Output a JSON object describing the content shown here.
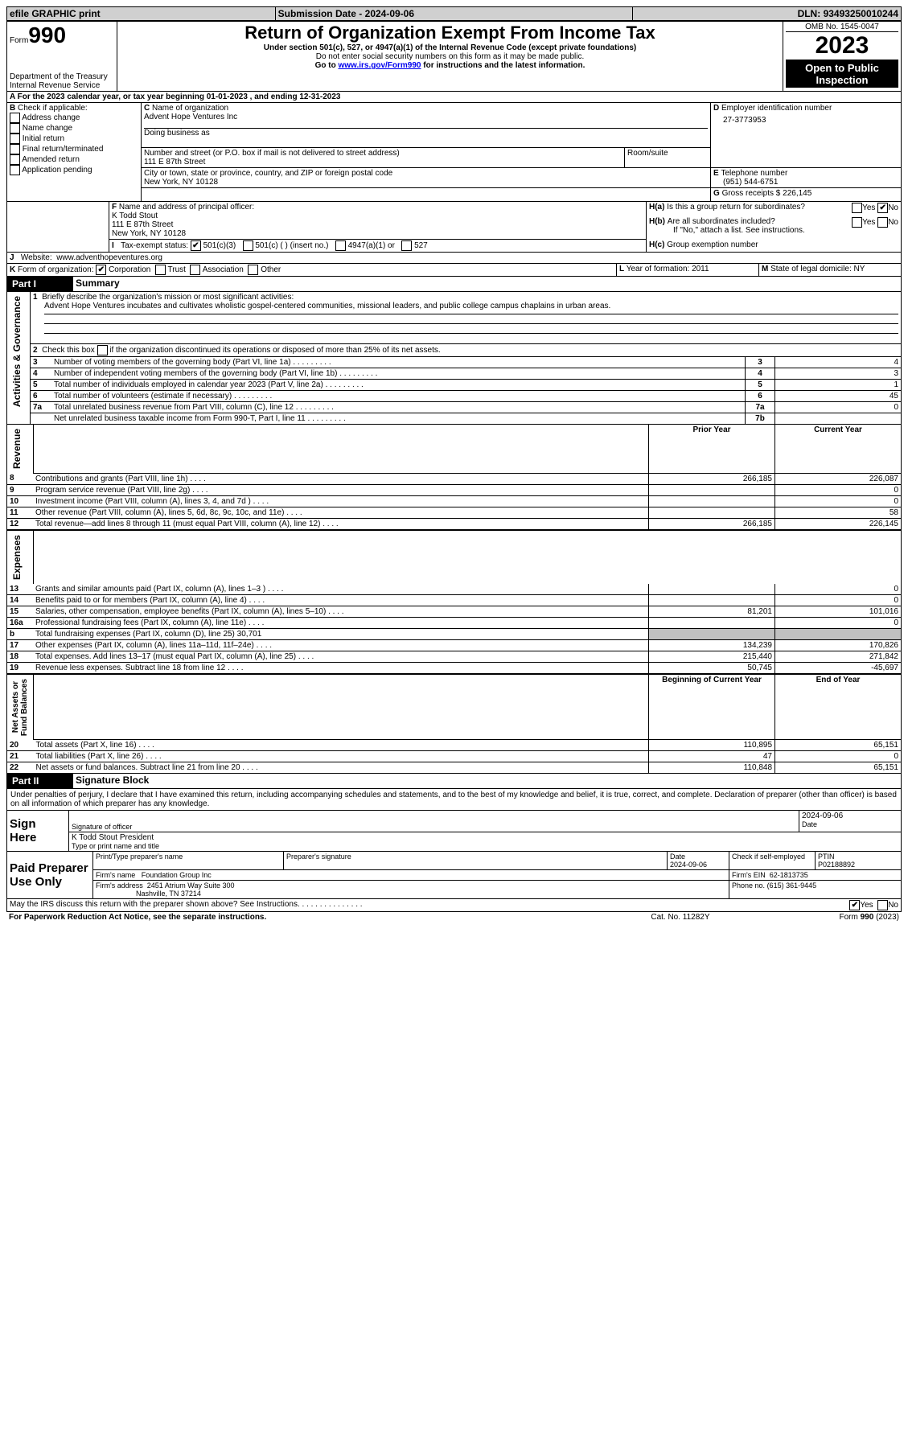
{
  "topbar": {
    "efile": "efile GRAPHIC print",
    "subdate_label": "Submission Date - ",
    "subdate": "2024-09-06",
    "dln_label": "DLN: ",
    "dln": "93493250010244"
  },
  "header": {
    "form_label": "Form",
    "form_num": "990",
    "title": "Return of Organization Exempt From Income Tax",
    "subtitle": "Under section 501(c), 527, or 4947(a)(1) of the Internal Revenue Code (except private foundations)",
    "warn": "Do not enter social security numbers on this form as it may be made public.",
    "goto": "Go to ",
    "goto_link": "www.irs.gov/Form990",
    "goto_tail": " for instructions and the latest information.",
    "dept": "Department of the Treasury\nInternal Revenue Service",
    "omb": "OMB No. 1545-0047",
    "year": "2023",
    "public": "Open to Public Inspection"
  },
  "A": {
    "line": "For the 2023 calendar year, or tax year beginning 01-01-2023    , and ending 12-31-2023"
  },
  "B": {
    "label": "Check if applicable:",
    "items": [
      "Address change",
      "Name change",
      "Initial return",
      "Final return/terminated",
      "Amended return",
      "Application pending"
    ]
  },
  "C": {
    "name_label": "Name of organization",
    "name": "Advent Hope Ventures Inc",
    "dba_label": "Doing business as",
    "addr_label": "Number and street (or P.O. box if mail is not delivered to street address)",
    "addr": "111 E 87th Street",
    "room_label": "Room/suite",
    "city_label": "City or town, state or province, country, and ZIP or foreign postal code",
    "city": "New York, NY  10128"
  },
  "D": {
    "label": "Employer identification number",
    "val": "27-3773953"
  },
  "E": {
    "label": "Telephone number",
    "val": "(951) 544-6751"
  },
  "G": {
    "label": "Gross receipts $",
    "val": "226,145"
  },
  "F": {
    "label": "Name and address of principal officer:",
    "name": "K Todd Stout",
    "addr": "111 E 87th Street",
    "city": "New York, NY  10128"
  },
  "H": {
    "a": "Is this a group return for subordinates?",
    "a_no": true,
    "b": "Are all subordinates included?",
    "b_note": "If \"No,\" attach a list. See instructions.",
    "c": "Group exemption number"
  },
  "I": {
    "label": "Tax-exempt status:",
    "c3": "501(c)(3)",
    "cins": "501(c) (  ) (insert no.)",
    "a1": "4947(a)(1) or",
    "s527": "527",
    "c3_checked": true
  },
  "J": {
    "label": "Website:",
    "val": "www.adventhopeventures.org"
  },
  "K": {
    "label": "Form of organization:",
    "corp": "Corporation",
    "trust": "Trust",
    "assoc": "Association",
    "other": "Other",
    "corp_checked": true
  },
  "L": {
    "label": "Year of formation: ",
    "val": "2011"
  },
  "M": {
    "label": "State of legal domicile: ",
    "val": "NY"
  },
  "part1": {
    "title": "Part I",
    "heading": "Summary",
    "q1": "Briefly describe the organization's mission or most significant activities:",
    "mission": "Advent Hope Ventures incubates and cultivates wholistic gospel-centered communities, missional leaders, and public college campus chaplains in urban areas.",
    "q2": "Check this box",
    "q2b": "if the organization discontinued its operations or disposed of more than 25% of its net assets.",
    "rows": [
      {
        "n": "3",
        "t": "Number of voting members of the governing body (Part VI, line 1a)",
        "box": "3",
        "v": "4"
      },
      {
        "n": "4",
        "t": "Number of independent voting members of the governing body (Part VI, line 1b)",
        "box": "4",
        "v": "3"
      },
      {
        "n": "5",
        "t": "Total number of individuals employed in calendar year 2023 (Part V, line 2a)",
        "box": "5",
        "v": "1"
      },
      {
        "n": "6",
        "t": "Total number of volunteers (estimate if necessary)",
        "box": "6",
        "v": "45"
      },
      {
        "n": "7a",
        "t": "Total unrelated business revenue from Part VIII, column (C), line 12",
        "box": "7a",
        "v": "0"
      },
      {
        "n": "",
        "t": "Net unrelated business taxable income from Form 990-T, Part I, line 11",
        "box": "7b",
        "v": ""
      }
    ],
    "col_prior": "Prior Year",
    "col_curr": "Current Year",
    "revenue": [
      {
        "n": "8",
        "t": "Contributions and grants (Part VIII, line 1h)",
        "p": "266,185",
        "c": "226,087"
      },
      {
        "n": "9",
        "t": "Program service revenue (Part VIII, line 2g)",
        "p": "",
        "c": "0"
      },
      {
        "n": "10",
        "t": "Investment income (Part VIII, column (A), lines 3, 4, and 7d )",
        "p": "",
        "c": "0"
      },
      {
        "n": "11",
        "t": "Other revenue (Part VIII, column (A), lines 5, 6d, 8c, 9c, 10c, and 11e)",
        "p": "",
        "c": "58"
      },
      {
        "n": "12",
        "t": "Total revenue—add lines 8 through 11 (must equal Part VIII, column (A), line 12)",
        "p": "266,185",
        "c": "226,145"
      }
    ],
    "expenses": [
      {
        "n": "13",
        "t": "Grants and similar amounts paid (Part IX, column (A), lines 1–3 )",
        "p": "",
        "c": "0"
      },
      {
        "n": "14",
        "t": "Benefits paid to or for members (Part IX, column (A), line 4)",
        "p": "",
        "c": "0"
      },
      {
        "n": "15",
        "t": "Salaries, other compensation, employee benefits (Part IX, column (A), lines 5–10)",
        "p": "81,201",
        "c": "101,016"
      },
      {
        "n": "16a",
        "t": "Professional fundraising fees (Part IX, column (A), line 11e)",
        "p": "",
        "c": "0"
      },
      {
        "n": "b",
        "t": "Total fundraising expenses (Part IX, column (D), line 25) 30,701",
        "p": "gray",
        "c": "gray"
      },
      {
        "n": "17",
        "t": "Other expenses (Part IX, column (A), lines 11a–11d, 11f–24e)",
        "p": "134,239",
        "c": "170,826"
      },
      {
        "n": "18",
        "t": "Total expenses. Add lines 13–17 (must equal Part IX, column (A), line 25)",
        "p": "215,440",
        "c": "271,842"
      },
      {
        "n": "19",
        "t": "Revenue less expenses. Subtract line 18 from line 12",
        "p": "50,745",
        "c": "-45,697"
      }
    ],
    "col_beg": "Beginning of Current Year",
    "col_end": "End of Year",
    "net": [
      {
        "n": "20",
        "t": "Total assets (Part X, line 16)",
        "p": "110,895",
        "c": "65,151"
      },
      {
        "n": "21",
        "t": "Total liabilities (Part X, line 26)",
        "p": "47",
        "c": "0"
      },
      {
        "n": "22",
        "t": "Net assets or fund balances. Subtract line 21 from line 20",
        "p": "110,848",
        "c": "65,151"
      }
    ],
    "side_ag": "Activities & Governance",
    "side_rev": "Revenue",
    "side_exp": "Expenses",
    "side_net": "Net Assets or\nFund Balances"
  },
  "part2": {
    "title": "Part II",
    "heading": "Signature Block",
    "decl": "Under penalties of perjury, I declare that I have examined this return, including accompanying schedules and statements, and to the best of my knowledge and belief, it is true, correct, and complete. Declaration of preparer (other than officer) is based on all information of which preparer has any knowledge.",
    "sign_here": "Sign Here",
    "sig_officer": "Signature of officer",
    "sig_date": "2024-09-06",
    "officer_name": "K Todd Stout President",
    "type_label": "Type or print name and title",
    "date_label": "Date",
    "paid": "Paid Preparer Use Only",
    "p_name_label": "Print/Type preparer's name",
    "p_sig_label": "Preparer's signature",
    "p_date": "2024-09-06",
    "p_check": "Check          if self-employed",
    "p_ptin_label": "PTIN",
    "p_ptin": "P02188892",
    "firm_name_label": "Firm's name",
    "firm_name": "Foundation Group Inc",
    "firm_ein_label": "Firm's EIN",
    "firm_ein": "62-1813735",
    "firm_addr_label": "Firm's address",
    "firm_addr": "2451 Atrium Way Suite 300",
    "firm_city": "Nashville, TN  37214",
    "phone_label": "Phone no.",
    "phone": "(615) 361-9445",
    "may": "May the IRS discuss this return with the preparer shown above? See Instructions.",
    "may_yes": true
  },
  "footer": {
    "pra": "For Paperwork Reduction Act Notice, see the separate instructions.",
    "cat": "Cat. No. 11282Y",
    "form": "Form ",
    "formnum": "990",
    "formyear": " (2023)"
  }
}
